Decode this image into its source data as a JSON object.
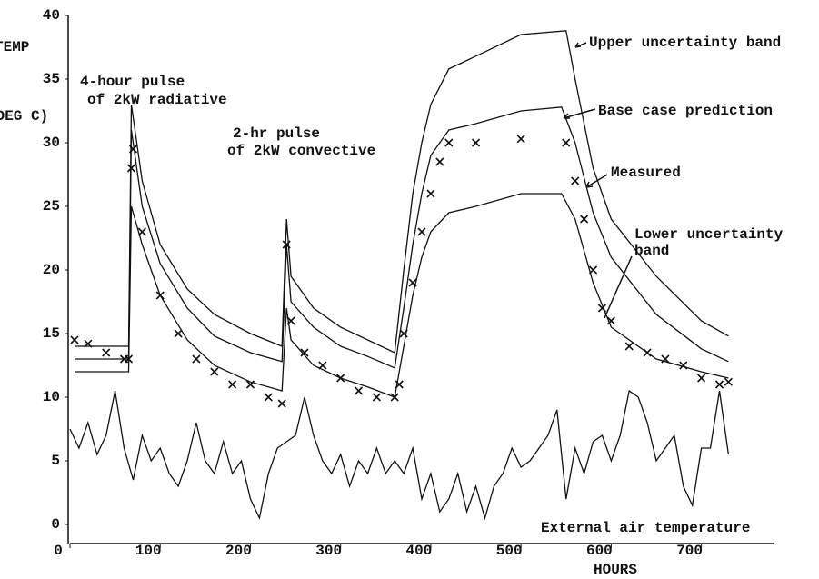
{
  "chart_data": {
    "type": "line",
    "y_label_1": "TEMP",
    "y_label_2": "(DEG C)",
    "x_label": "HOURS",
    "annotations": [
      "4-hour pulse",
      "of 2kW radiative",
      "2-hr pulse",
      "of 2kW convective",
      "Upper uncertainty band",
      "Base case prediction",
      "Measured",
      "Lower uncertainty",
      "band",
      "External air temperature"
    ],
    "xlim": [
      0,
      780
    ],
    "xticks": [
      0,
      100,
      200,
      300,
      400,
      500,
      600,
      700
    ],
    "ylim": [
      -1.5,
      40
    ],
    "yticks": [
      0,
      5,
      10,
      15,
      20,
      25,
      30,
      35,
      40
    ],
    "color": "#111111",
    "series": [
      {
        "name": "Upper uncertainty band",
        "marker": "none",
        "x": [
          5,
          65,
          68,
          80,
          100,
          130,
          160,
          200,
          235,
          240,
          245,
          270,
          300,
          330,
          360,
          370,
          380,
          390,
          400,
          420,
          450,
          500,
          550,
          560,
          580,
          600,
          650,
          700,
          730
        ],
        "values": [
          14,
          14,
          33,
          27,
          22,
          18.5,
          16.5,
          15,
          14,
          24,
          19.5,
          17,
          15.5,
          14.5,
          13.5,
          20,
          26,
          30,
          33,
          35.8,
          36.8,
          38.5,
          38.8,
          35,
          28,
          24,
          19.5,
          16,
          14.8
        ]
      },
      {
        "name": "Base case prediction",
        "marker": "none",
        "x": [
          5,
          65,
          68,
          80,
          100,
          130,
          160,
          200,
          235,
          240,
          245,
          270,
          300,
          330,
          360,
          370,
          380,
          390,
          400,
          420,
          450,
          500,
          545,
          560,
          580,
          600,
          650,
          700,
          730
        ],
        "values": [
          13,
          13,
          31,
          25,
          20.5,
          17,
          14.8,
          13.5,
          12.8,
          22,
          17.5,
          15.5,
          14,
          13.2,
          12.3,
          17,
          22,
          26,
          29,
          31,
          31.5,
          32.5,
          32.8,
          30,
          24.5,
          21,
          16.5,
          13.8,
          12.8
        ]
      },
      {
        "name": "Lower uncertainty band",
        "marker": "none",
        "x": [
          5,
          65,
          68,
          80,
          100,
          130,
          160,
          200,
          235,
          240,
          245,
          270,
          300,
          330,
          360,
          370,
          380,
          390,
          400,
          420,
          450,
          500,
          545,
          560,
          580,
          600,
          650,
          700,
          730
        ],
        "values": [
          12,
          12,
          25,
          22,
          18,
          14.5,
          12.5,
          11.2,
          10.5,
          17,
          14.5,
          12.5,
          11.5,
          10.8,
          10,
          14,
          18,
          21,
          23,
          24.5,
          25,
          26,
          26,
          24,
          19,
          15.5,
          13,
          12,
          11.5
        ]
      },
      {
        "name": "Measured",
        "marker": "x",
        "x": [
          5,
          20,
          40,
          60,
          65,
          68,
          70,
          80,
          100,
          120,
          140,
          160,
          180,
          200,
          220,
          235,
          240,
          245,
          260,
          280,
          300,
          320,
          340,
          360,
          365,
          370,
          380,
          390,
          400,
          410,
          420,
          450,
          500,
          550,
          560,
          570,
          580,
          590,
          600,
          620,
          640,
          660,
          680,
          700,
          720,
          730
        ],
        "values": [
          14.5,
          14.2,
          13.5,
          13,
          13,
          28,
          29.5,
          23,
          18,
          15,
          13,
          12,
          11,
          11,
          10,
          9.5,
          22,
          16,
          13.5,
          12.5,
          11.5,
          10.5,
          10,
          10,
          11,
          15,
          19,
          23,
          26,
          28.5,
          30,
          30,
          30.3,
          30,
          27,
          24,
          20,
          17,
          16,
          14,
          13.5,
          13,
          12.5,
          11.5,
          11,
          11.2
        ]
      },
      {
        "name": "External air temperature",
        "marker": "none",
        "x": [
          0,
          10,
          20,
          30,
          40,
          50,
          60,
          70,
          80,
          90,
          100,
          110,
          120,
          130,
          140,
          150,
          160,
          170,
          180,
          190,
          200,
          210,
          220,
          230,
          240,
          250,
          260,
          270,
          280,
          290,
          300,
          310,
          320,
          330,
          340,
          350,
          360,
          370,
          380,
          390,
          400,
          410,
          420,
          430,
          440,
          450,
          460,
          470,
          480,
          490,
          500,
          510,
          520,
          530,
          540,
          550,
          560,
          570,
          580,
          590,
          600,
          610,
          620,
          630,
          640,
          650,
          660,
          670,
          680,
          690,
          700,
          710,
          720,
          730
        ],
        "values": [
          7.5,
          6,
          8,
          5.5,
          7,
          10.5,
          6,
          3.5,
          7,
          5,
          6,
          4,
          3,
          5,
          8,
          5,
          4,
          6.5,
          4,
          5,
          2,
          0.5,
          4,
          6,
          6.5,
          7,
          10,
          7,
          5,
          4,
          5.5,
          3,
          5,
          4,
          6,
          4,
          5,
          4,
          6,
          2,
          4,
          1,
          2,
          4,
          1,
          3,
          0.5,
          3,
          4,
          6,
          4.5,
          5,
          6,
          7,
          9,
          2,
          6,
          4,
          6.5,
          7,
          5,
          7,
          10.5,
          10,
          8,
          5,
          6,
          7,
          3,
          1.5,
          6,
          6,
          10.5,
          5.5
        ]
      }
    ]
  }
}
